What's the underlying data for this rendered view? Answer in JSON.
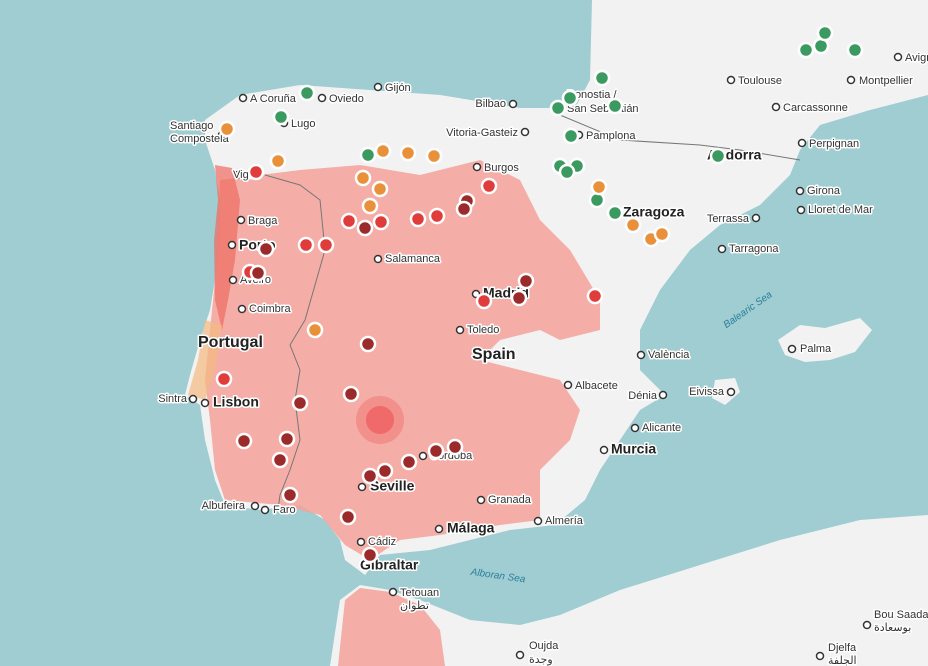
{
  "places": [
    "Gijón",
    "A Coruña",
    "Oviedo",
    "Bilbao",
    "Toulouse",
    "Montpellier",
    "Avign",
    "Carcassonne",
    "Lugo",
    "Santiago",
    "Compostela",
    "Vitoria-Gasteiz",
    "Donostia /",
    "San Sebastián",
    "Pamplona",
    "Andorra",
    "Perpignan",
    "Burgos",
    "Vigo",
    "Girona",
    "Lloret de Mar",
    "Zaragoza",
    "Terrassa",
    "Braga",
    "Porto",
    "Tarragona",
    "Salamanca",
    "Aveiro",
    "Madrid",
    "Coimbra",
    "Balearic Sea",
    "Toledo",
    "Portugal",
    "Spain",
    "València",
    "Palma",
    "Sintra",
    "Lisbon",
    "Albacete",
    "Eivissa",
    "Dénia",
    "Alicante",
    "Murcia",
    "Córdoba",
    "Seville",
    "Granada",
    "Albufeira",
    "Faro",
    "Málaga",
    "Almería",
    "Cádiz",
    "Gibraltar",
    "Alboran Sea",
    "Tetouan",
    "تطوان",
    "Bou Saada",
    "بوسعادة",
    "Oujda",
    "وجدة",
    "Djelfa",
    "الجلفة"
  ]
}
